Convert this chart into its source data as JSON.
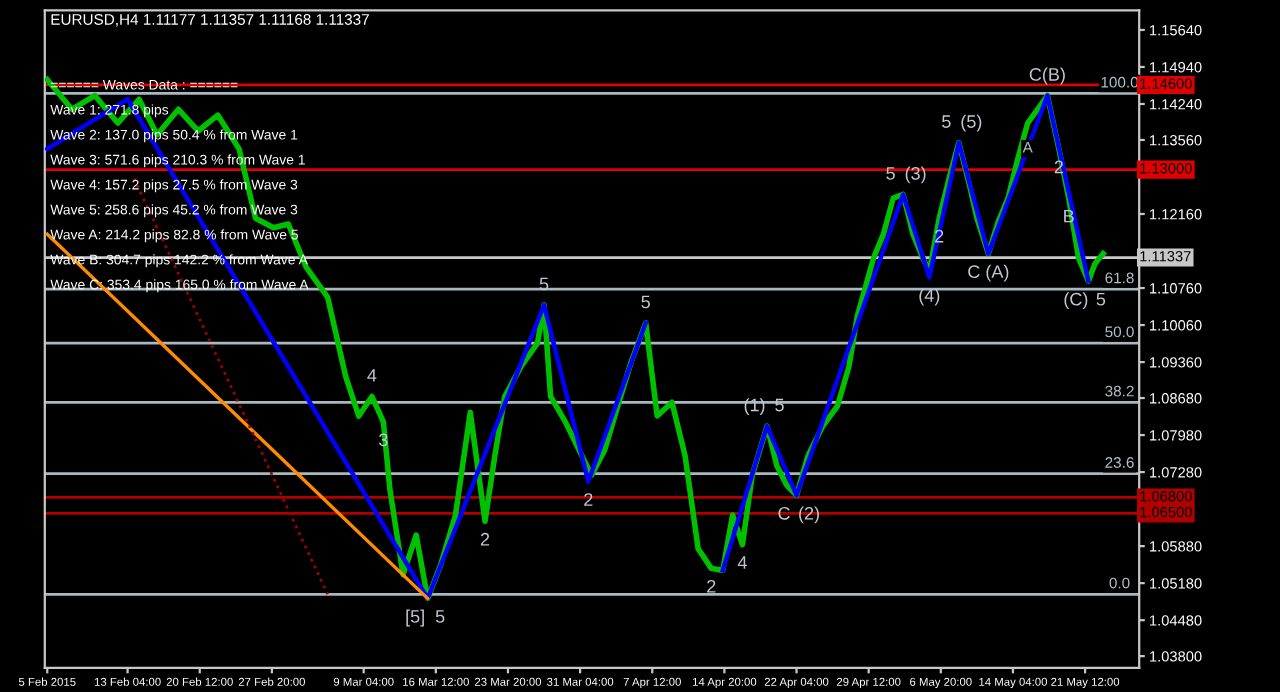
{
  "chart_data": {
    "type": "line",
    "title": "EURUSD,H4 1.11177 1.11357 1.11168 1.11337",
    "xlim": [
      "2015-02-04T18:00",
      "2015-05-27T00:00"
    ],
    "ylim": [
      1.0358,
      1.1601
    ],
    "xticks": [
      {
        "value": "2015-02-05",
        "label": "5 Feb 2015"
      },
      {
        "value": "2015-02-13T04:00",
        "label": "13 Feb 04:00"
      },
      {
        "value": "2015-02-20T12:00",
        "label": "20 Feb 12:00"
      },
      {
        "value": "2015-02-27T20:00",
        "label": "27 Feb 20:00"
      },
      {
        "value": "2015-03-09T04:00",
        "label": "9 Mar 04:00"
      },
      {
        "value": "2015-03-16T12:00",
        "label": "16 Mar 12:00"
      },
      {
        "value": "2015-03-23T20:00",
        "label": "23 Mar 20:00"
      },
      {
        "value": "2015-03-31T04:00",
        "label": "31 Mar 04:00"
      },
      {
        "value": "2015-04-07T12:00",
        "label": "7 Apr 12:00"
      },
      {
        "value": "2015-04-14T20:00",
        "label": "14 Apr 20:00"
      },
      {
        "value": "2015-04-22T04:00",
        "label": "22 Apr 04:00"
      },
      {
        "value": "2015-04-29T12:00",
        "label": "29 Apr 12:00"
      },
      {
        "value": "2015-05-06T20:00",
        "label": "6 May 20:00"
      },
      {
        "value": "2015-05-14T04:00",
        "label": "14 May 04:00"
      },
      {
        "value": "2015-05-21T12:00",
        "label": "21 May 12:00"
      }
    ],
    "yticks": [
      {
        "value": 1.1564,
        "label": "1.15640"
      },
      {
        "value": 1.1494,
        "label": "1.14940"
      },
      {
        "value": 1.1424,
        "label": "1.14240"
      },
      {
        "value": 1.1356,
        "label": "1.13560"
      },
      {
        "value": 1.1286,
        "label": null
      },
      {
        "value": 1.1216,
        "label": "1.12160"
      },
      {
        "value": 1.1146,
        "label": null
      },
      {
        "value": 1.1076,
        "label": "1.10760"
      },
      {
        "value": 1.1006,
        "label": "1.10060"
      },
      {
        "value": 1.0936,
        "label": "1.09360"
      },
      {
        "value": 1.0868,
        "label": "1.08680"
      },
      {
        "value": 1.0798,
        "label": "1.07980"
      },
      {
        "value": 1.0728,
        "label": "1.07280"
      },
      {
        "value": 1.0658,
        "label": null
      },
      {
        "value": 1.0588,
        "label": "1.05880"
      },
      {
        "value": 1.0518,
        "label": "1.05180"
      },
      {
        "value": 1.0448,
        "label": "1.04480"
      },
      {
        "value": 1.038,
        "label": "1.03800"
      }
    ],
    "grid": false,
    "legend": false,
    "series": [
      {
        "color": "#00c000",
        "line_style": "solid",
        "x": [
          "2015-02-05T00:00",
          "2015-02-07T12:00",
          "2015-02-09T20:00",
          "2015-02-12T04:00",
          "2015-02-14T08:00",
          "2015-02-16T04:00",
          "2015-02-18T08:00",
          "2015-02-20T08:00",
          "2015-02-22T08:00",
          "2015-02-24T12:00",
          "2015-02-26T04:00",
          "2015-02-28T00:00",
          "2015-03-01T12:00",
          "2015-03-03T08:00",
          "2015-03-05T12:00",
          "2015-03-07T08:00",
          "2015-03-08T16:00",
          "2015-03-10T00:00",
          "2015-03-11T04:00",
          "2015-03-11T20:00",
          "2015-03-13T04:00",
          "2015-03-14T12:00",
          "2015-03-15T16:00",
          "2015-03-17T00:00",
          "2015-03-18T12:00",
          "2015-03-20T00:00",
          "2015-03-21T12:00",
          "2015-03-22T12:00",
          "2015-03-23T12:00",
          "2015-03-25T04:00",
          "2015-03-26T20:00",
          "2015-03-27T12:00",
          "2015-03-28T04:00",
          "2015-03-29T16:00",
          "2015-03-30T20:00",
          "2015-04-01T08:00",
          "2015-04-02T16:00",
          "2015-04-04T00:00",
          "2015-04-05T08:00",
          "2015-04-06T20:00",
          "2015-04-08T00:00",
          "2015-04-09T12:00",
          "2015-04-10T20:00",
          "2015-04-12T04:00",
          "2015-04-13T12:00",
          "2015-04-14T16:00",
          "2015-04-15T16:00",
          "2015-04-16T16:00",
          "2015-04-17T16:00",
          "2015-04-19T04:00",
          "2015-04-20T04:00",
          "2015-04-21T04:00",
          "2015-04-22T04:00",
          "2015-04-23T08:00",
          "2015-04-24T20:00",
          "2015-04-26T08:00",
          "2015-04-27T12:00",
          "2015-04-28T08:00",
          "2015-04-30T00:00",
          "2015-05-01T00:00",
          "2015-05-02T00:00",
          "2015-05-03T00:00",
          "2015-05-04T00:00",
          "2015-05-05T00:00",
          "2015-05-05T16:00",
          "2015-05-06T16:00",
          "2015-05-07T16:00",
          "2015-05-08T16:00",
          "2015-05-09T20:00",
          "2015-05-10T12:00",
          "2015-05-11T16:00",
          "2015-05-12T16:00",
          "2015-05-13T16:00",
          "2015-05-14T16:00",
          "2015-05-15T16:00",
          "2015-05-16T16:00",
          "2015-05-17T16:00",
          "2015-05-18T20:00",
          "2015-05-19T20:00",
          "2015-05-20T20:00",
          "2015-05-21T20:00",
          "2015-05-22T12:00",
          "2015-05-23T08:00"
        ],
        "values": [
          1.147,
          1.1414,
          1.144,
          1.1388,
          1.1433,
          1.1366,
          1.1414,
          1.1373,
          1.1403,
          1.1339,
          1.1208,
          1.119,
          1.1197,
          1.1115,
          1.1059,
          1.0909,
          1.0834,
          1.0871,
          1.0823,
          1.0695,
          1.0534,
          1.0609,
          1.0489,
          1.0553,
          1.0647,
          1.0841,
          1.0635,
          1.0759,
          1.0871,
          1.0928,
          1.0972,
          1.1044,
          1.0871,
          1.0823,
          1.0778,
          1.0722,
          1.077,
          1.0853,
          1.0935,
          1.101,
          1.0834,
          1.086,
          1.0759,
          1.0583,
          1.0546,
          1.0542,
          1.0647,
          1.0591,
          1.0722,
          1.0815,
          1.074,
          1.0703,
          1.0684,
          1.0759,
          1.0815,
          1.0853,
          1.0928,
          1.1022,
          1.1133,
          1.1178,
          1.1246,
          1.1253,
          1.1178,
          1.1133,
          1.1107,
          1.1208,
          1.1283,
          1.1351,
          1.1264,
          1.1208,
          1.1141,
          1.1201,
          1.1246,
          1.1321,
          1.1388,
          1.1414,
          1.144,
          1.1339,
          1.1246,
          1.1133,
          1.1089,
          1.1122,
          1.1141
        ]
      },
      {
        "color": "#0000ff",
        "line_style": "solid",
        "x": [
          "2015-02-05T00:00",
          "2015-02-13T04:00",
          "2015-03-15T16:00",
          "2015-03-27T12:00",
          "2015-04-01T00:00",
          "2015-04-06T20:00",
          "2015-04-11T04:00",
          "2015-04-14T16:00",
          "2015-04-19T04:00",
          "2015-04-22T04:00",
          "2015-05-03T00:00",
          "2015-05-05T16:00",
          "2015-05-08T16:00",
          "2015-05-11T16:00",
          "2015-05-17T16:00",
          "2015-05-21T20:00"
        ],
        "values": [
          1.1339,
          1.1433,
          1.0489,
          1.1044,
          1.071,
          1.101,
          null,
          1.0542,
          1.0815,
          1.0684,
          1.1253,
          1.1096,
          1.1351,
          1.1141,
          1.144,
          1.1089
        ]
      },
      {
        "color": "#ff8c00",
        "line_style": "solid",
        "x": [
          "2015-02-05T00:00",
          "2015-03-15T16:00"
        ],
        "values": [
          1.1178,
          1.0489
        ]
      },
      {
        "color": "#a00000",
        "line_style": "dotted",
        "x": [
          "2015-02-13T20:00",
          "2015-03-05T12:00"
        ],
        "values": [
          1.1283,
          1.0497
        ]
      }
    ],
    "ref_lines": [
      {
        "axis": "y",
        "value": 1.146,
        "label": "1.14600",
        "color": "#e00000",
        "line_style": "solid"
      },
      {
        "axis": "y",
        "value": 1.13,
        "label": "1.13000",
        "color": "#e00000",
        "line_style": "solid"
      },
      {
        "axis": "y",
        "value": 1.068,
        "label": "1.06800",
        "color": "#b00000",
        "line_style": "solid"
      },
      {
        "axis": "y",
        "value": 1.065,
        "label": "1.06500",
        "color": "#b00000",
        "line_style": "solid"
      },
      {
        "axis": "y",
        "value": 1.11337,
        "label": "1.11337",
        "color": "#c8c8c8",
        "line_style": "solid"
      },
      {
        "axis": "y",
        "value": 1.1444,
        "color": "#a8b8c0",
        "line_style": "solid"
      },
      {
        "axis": "y",
        "value": 1.1074,
        "color": "#a8b8c0",
        "line_style": "solid"
      },
      {
        "axis": "y",
        "value": 1.0972,
        "color": "#a8b8c0",
        "line_style": "solid"
      },
      {
        "axis": "y",
        "value": 1.086,
        "color": "#a8b8c0",
        "line_style": "solid"
      },
      {
        "axis": "y",
        "value": 1.0725,
        "color": "#a8b8c0",
        "line_style": "solid"
      },
      {
        "axis": "y",
        "value": 1.0497,
        "color": "#a8b8c0",
        "line_style": "solid"
      }
    ],
    "annotations": [
      "====== Waves Data : ======",
      "Wave 1: 271.8 pips",
      "Wave 2: 137.0 pips 50.4 % from Wave 1",
      "Wave 3: 571.6 pips 210.3 % from Wave 1",
      "Wave 4: 157.2 pips 27.5 % from Wave 3",
      "Wave 5: 258.6 pips 45.2 % from Wave 3",
      "Wave A: 214.2 pips 82.8 % from Wave 5",
      "Wave B: 304.7 pips 142.2 % from Wave A",
      "Wave C: 353.4 pips 165.0 % from Wave A",
      {
        "text": "100.0",
        "x": "2015-05-25T00:00",
        "y": 1.1444
      },
      {
        "text": "61.8",
        "x": "2015-05-25T00:00",
        "y": 1.1074
      },
      {
        "text": "50.0",
        "x": "2015-05-25T00:00",
        "y": 1.0972
      },
      {
        "text": "38.2",
        "x": "2015-05-25T00:00",
        "y": 1.086
      },
      {
        "text": "23.6",
        "x": "2015-05-25T00:00",
        "y": 1.0725
      },
      {
        "text": "0.0",
        "x": "2015-05-25T00:00",
        "y": 1.0497
      },
      {
        "text": "[5]",
        "x": "2015-03-15T16:00",
        "y": 1.0489
      },
      {
        "text": "5",
        "x": "2015-03-15T16:00",
        "y": 1.0489
      },
      {
        "text": "(1)",
        "x": "2015-04-19T04:00",
        "y": 1.0815
      },
      {
        "text": "5",
        "x": "2015-04-19T04:00",
        "y": 1.0815
      },
      {
        "text": "C",
        "x": "2015-04-22T04:00",
        "y": 1.0684
      },
      {
        "text": "(2)",
        "x": "2015-04-22T04:00",
        "y": 1.0684
      },
      {
        "text": "5",
        "x": "2015-05-03T00:00",
        "y": 1.1253
      },
      {
        "text": "(3)",
        "x": "2015-05-03T00:00",
        "y": 1.1253
      },
      {
        "text": "(4)",
        "x": "2015-05-05T16:00",
        "y": 1.1096
      },
      {
        "text": "5",
        "x": "2015-05-08T16:00",
        "y": 1.1351
      },
      {
        "text": "(5)",
        "x": "2015-05-08T16:00",
        "y": 1.1351
      },
      {
        "text": "C (A)",
        "x": "2015-05-11T16:00",
        "y": 1.1141
      },
      {
        "text": "C(B)",
        "x": "2015-05-17T16:00",
        "y": 1.144
      },
      {
        "text": "(C)",
        "x": "2015-05-21T20:00",
        "y": 1.1089
      },
      {
        "text": "5",
        "x": "2015-05-21T20:00",
        "y": 1.1089
      },
      {
        "text": "5",
        "x": "2015-03-27T12:00",
        "y": 1.1044
      },
      {
        "text": "5",
        "x": "2015-04-06T20:00",
        "y": 1.101
      },
      {
        "text": "2",
        "x": "2015-04-01T00:00",
        "y": 1.071
      },
      {
        "text": "2",
        "x": "2015-03-21T12:00",
        "y": 1.0635
      },
      {
        "text": "2",
        "x": "2015-04-13T12:00",
        "y": 1.0546
      },
      {
        "text": "4",
        "x": "2015-04-16T16:00",
        "y": 1.0591
      },
      {
        "text": "3",
        "x": "2015-03-11T04:00",
        "y": 1.0823
      },
      {
        "text": "4",
        "x": "2015-03-10T00:00",
        "y": 1.0871
      },
      {
        "text": "A",
        "x": "2015-05-15T16:00",
        "y": 1.1321
      },
      {
        "text": "B",
        "x": "2015-05-19T20:00",
        "y": 1.1246
      },
      {
        "text": "2",
        "x": "2015-05-18T20:00",
        "y": 1.1339
      },
      {
        "text": "2",
        "x": "2015-05-06T16:00",
        "y": 1.1208
      }
    ]
  }
}
